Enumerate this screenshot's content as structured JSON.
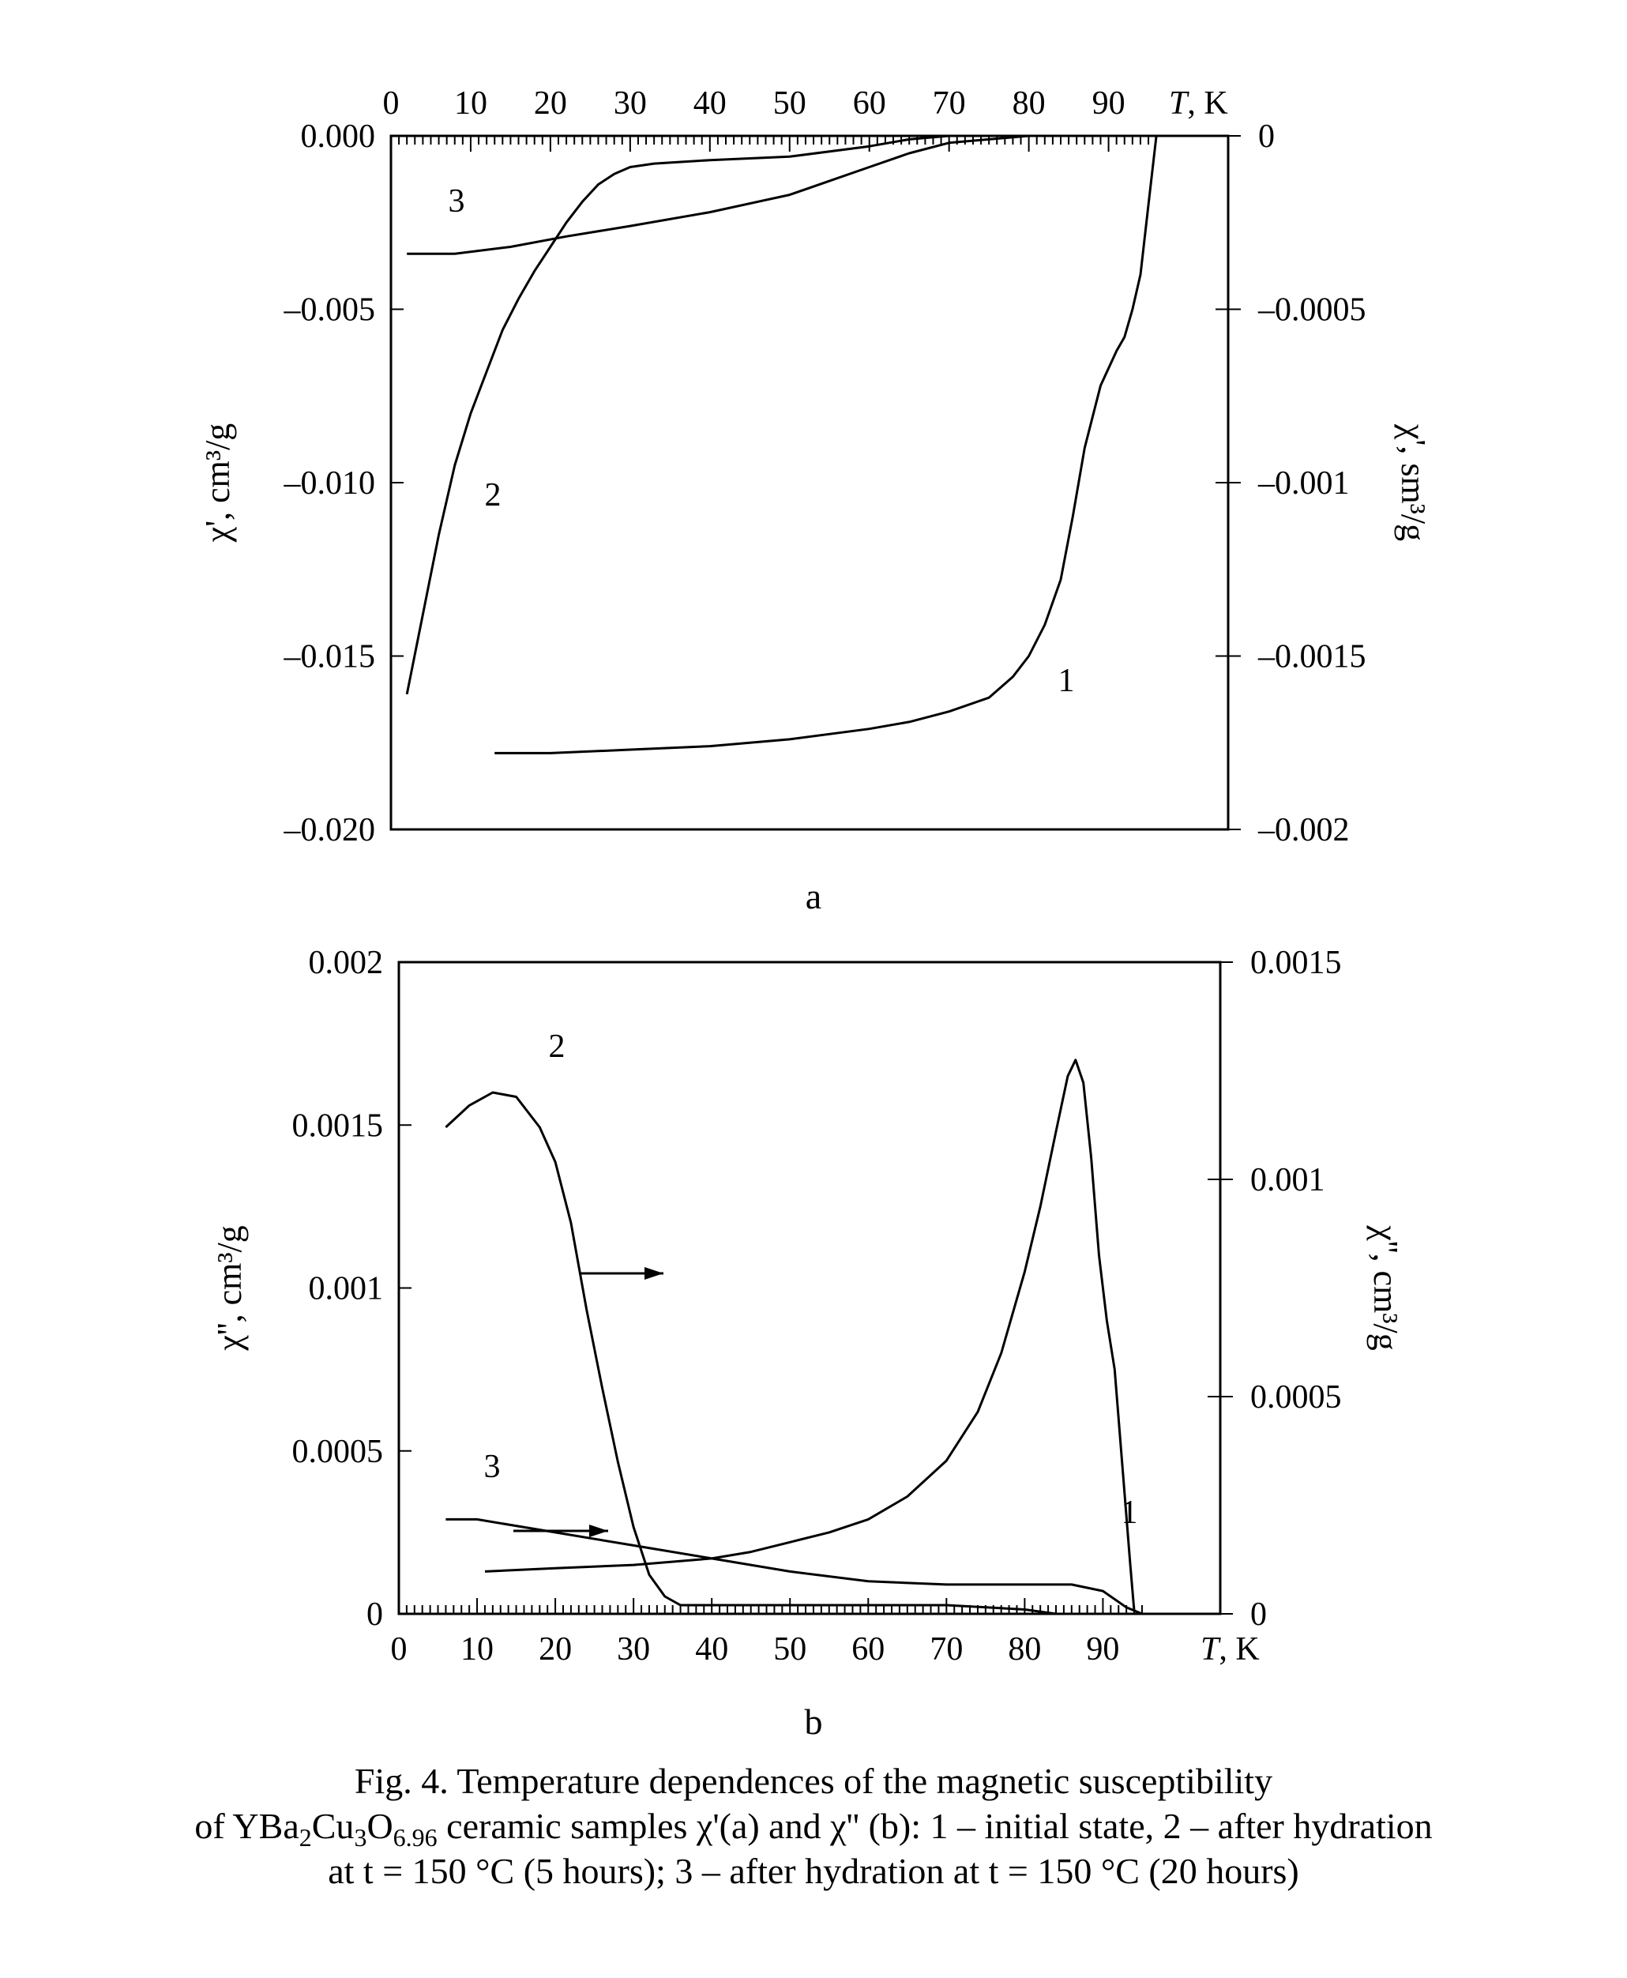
{
  "chart_data": [
    {
      "type": "line",
      "panel_label": "a",
      "x_axis": {
        "label": "T, K",
        "range": [
          0,
          105
        ],
        "ticks": [
          0,
          10,
          20,
          30,
          40,
          50,
          60,
          70,
          80,
          90
        ],
        "position": "top"
      },
      "y_left": {
        "label": "χ', cm³/g",
        "range": [
          -0.02,
          0.0
        ],
        "ticks": [
          0.0,
          -0.005,
          -0.01,
          -0.015,
          -0.02
        ],
        "tick_labels": [
          "0.000",
          "–0.005",
          "–0.010",
          "–0.015",
          "–0.020"
        ]
      },
      "y_right": {
        "label": "χ', sm³/g",
        "range": [
          -0.002,
          0.0
        ],
        "ticks": [
          0,
          -0.0005,
          -0.001,
          -0.0015,
          -0.002
        ],
        "tick_labels": [
          "0",
          "–0.0005",
          "–0.001",
          "–0.0015",
          "–0.002"
        ]
      },
      "series": [
        {
          "name": "1",
          "axis": "right",
          "points": [
            [
              13,
              -0.00178
            ],
            [
              20,
              -0.00178
            ],
            [
              30,
              -0.00177
            ],
            [
              40,
              -0.00176
            ],
            [
              50,
              -0.00174
            ],
            [
              60,
              -0.00171
            ],
            [
              65,
              -0.00169
            ],
            [
              70,
              -0.00166
            ],
            [
              75,
              -0.00162
            ],
            [
              78,
              -0.00156
            ],
            [
              80,
              -0.0015
            ],
            [
              82,
              -0.00141
            ],
            [
              84,
              -0.00128
            ],
            [
              85.5,
              -0.0011
            ],
            [
              87,
              -0.0009
            ],
            [
              89,
              -0.00072
            ],
            [
              91,
              -0.00062
            ],
            [
              92,
              -0.00058
            ],
            [
              93,
              -0.0005
            ],
            [
              94,
              -0.0004
            ],
            [
              95,
              -0.0002
            ],
            [
              96,
              0.0
            ]
          ]
        },
        {
          "name": "2",
          "axis": "left",
          "points": [
            [
              2,
              -0.0161
            ],
            [
              4,
              -0.0138
            ],
            [
              6,
              -0.0115
            ],
            [
              8,
              -0.0095
            ],
            [
              10,
              -0.008
            ],
            [
              12,
              -0.0068
            ],
            [
              14,
              -0.0056
            ],
            [
              16,
              -0.0047
            ],
            [
              18,
              -0.0039
            ],
            [
              20,
              -0.0032
            ],
            [
              22,
              -0.0025
            ],
            [
              24,
              -0.0019
            ],
            [
              26,
              -0.0014
            ],
            [
              28,
              -0.0011
            ],
            [
              30,
              -0.0009
            ],
            [
              33,
              -0.0008
            ],
            [
              40,
              -0.0007
            ],
            [
              50,
              -0.0006
            ],
            [
              60,
              -0.0003
            ],
            [
              65,
              -0.0001
            ],
            [
              70,
              0.0
            ],
            [
              80,
              0.0
            ],
            [
              84,
              0.0
            ]
          ]
        },
        {
          "name": "3",
          "axis": "left",
          "points": [
            [
              2,
              -0.0034
            ],
            [
              8,
              -0.0034
            ],
            [
              15,
              -0.0032
            ],
            [
              22,
              -0.0029
            ],
            [
              30,
              -0.0026
            ],
            [
              40,
              -0.0022
            ],
            [
              50,
              -0.0017
            ],
            [
              55,
              -0.0013
            ],
            [
              60,
              -0.0009
            ],
            [
              65,
              -0.0005
            ],
            [
              70,
              -0.0002
            ],
            [
              75,
              -0.0001
            ],
            [
              80,
              0.0
            ]
          ]
        }
      ]
    },
    {
      "type": "line",
      "panel_label": "b",
      "x_axis": {
        "label": "T, K",
        "range": [
          0,
          105
        ],
        "ticks": [
          0,
          10,
          20,
          30,
          40,
          50,
          60,
          70,
          80,
          90
        ],
        "position": "bottom"
      },
      "y_left": {
        "label": "χ'', cm³/g",
        "range": [
          0,
          0.002
        ],
        "ticks": [
          0,
          0.0005,
          0.001,
          0.0015,
          0.002
        ],
        "tick_labels": [
          "0",
          "0.0005",
          "0.001",
          "0.0015",
          "0.002"
        ]
      },
      "y_right": {
        "label": "χ'', cm³/g",
        "range": [
          0,
          0.0015
        ],
        "ticks": [
          0,
          0.0005,
          0.001,
          0.0015
        ],
        "tick_labels": [
          "0",
          "0.0005",
          "0.001",
          "0.0015"
        ]
      },
      "series": [
        {
          "name": "1",
          "axis": "left",
          "points": [
            [
              11,
              0.00013
            ],
            [
              20,
              0.00014
            ],
            [
              30,
              0.00015
            ],
            [
              40,
              0.00017
            ],
            [
              45,
              0.00019
            ],
            [
              50,
              0.00022
            ],
            [
              55,
              0.00025
            ],
            [
              60,
              0.00029
            ],
            [
              65,
              0.00036
            ],
            [
              70,
              0.00047
            ],
            [
              74,
              0.00062
            ],
            [
              77,
              0.0008
            ],
            [
              80,
              0.00105
            ],
            [
              82,
              0.00125
            ],
            [
              84,
              0.00148
            ],
            [
              85.5,
              0.00165
            ],
            [
              86.5,
              0.0017
            ],
            [
              87.5,
              0.00163
            ],
            [
              88.5,
              0.0014
            ],
            [
              89.5,
              0.0011
            ],
            [
              90.5,
              0.0009
            ],
            [
              91.5,
              0.00075
            ],
            [
              92.5,
              0.00045
            ],
            [
              93.5,
              0.00015
            ],
            [
              94,
              1e-05
            ]
          ]
        },
        {
          "name": "2",
          "axis": "right",
          "points": [
            [
              6,
              0.00112
            ],
            [
              9,
              0.00117
            ],
            [
              12,
              0.0012
            ],
            [
              15,
              0.00119
            ],
            [
              18,
              0.00112
            ],
            [
              20,
              0.00104
            ],
            [
              22,
              0.0009
            ],
            [
              24,
              0.0007
            ],
            [
              26,
              0.00052
            ],
            [
              28,
              0.00035
            ],
            [
              30,
              0.0002
            ],
            [
              32,
              9e-05
            ],
            [
              34,
              4e-05
            ],
            [
              36,
              2e-05
            ],
            [
              40,
              2e-05
            ],
            [
              50,
              2e-05
            ],
            [
              60,
              2e-05
            ],
            [
              70,
              2e-05
            ],
            [
              80,
              1e-05
            ],
            [
              84,
              0.0
            ]
          ]
        },
        {
          "name": "3",
          "axis": "left",
          "points": [
            [
              6,
              0.00029
            ],
            [
              10,
              0.00029
            ],
            [
              20,
              0.00025
            ],
            [
              30,
              0.00021
            ],
            [
              40,
              0.00017
            ],
            [
              50,
              0.00013
            ],
            [
              60,
              0.0001
            ],
            [
              70,
              9e-05
            ],
            [
              80,
              9e-05
            ],
            [
              86,
              9e-05
            ],
            [
              90,
              7e-05
            ],
            [
              93,
              2e-05
            ],
            [
              95,
              0.0
            ]
          ]
        }
      ],
      "arrows": [
        {
          "series": "2",
          "direction": "right"
        },
        {
          "series": "3",
          "direction": "right"
        }
      ]
    }
  ],
  "caption": {
    "line1": "Fig. 4. Temperature dependences of the magnetic susceptibility",
    "line2_prefix": "of YBa",
    "line2_sub1": "2",
    "line2_mid1": "Cu",
    "line2_sub2": "3",
    "line2_mid2": "O",
    "line2_sub3": "6.96",
    "line2_suffix": " ceramic samples χ'(a) and χ'' (b): 1 – initial state, 2 – after hydration",
    "line3": "at t = 150 °C (5 hours); 3 – after hydration at t = 150 °C (20 hours)"
  }
}
